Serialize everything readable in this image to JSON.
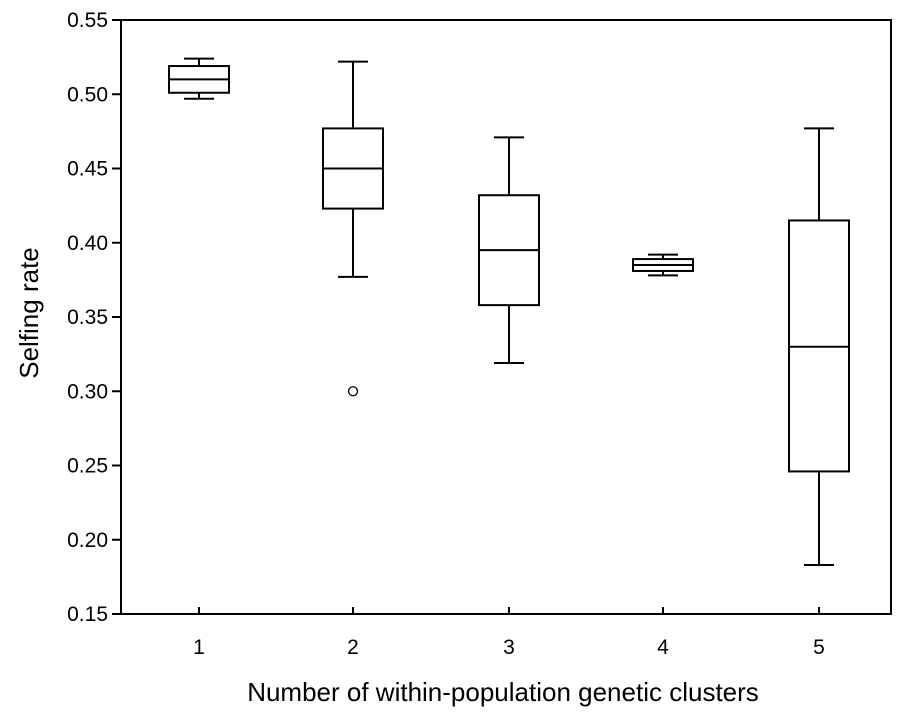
{
  "chart_data": {
    "type": "boxplot",
    "xlabel": "Number of within-population genetic clusters",
    "ylabel": "Selfing rate",
    "categories": [
      "1",
      "2",
      "3",
      "4",
      "5"
    ],
    "ylim": [
      0.15,
      0.55
    ],
    "yticks": [
      0.15,
      0.2,
      0.25,
      0.3,
      0.35,
      0.4,
      0.45,
      0.5,
      0.55
    ],
    "ytick_labels": [
      "0.15",
      "0.20",
      "0.25",
      "0.30",
      "0.35",
      "0.40",
      "0.45",
      "0.50",
      "0.55"
    ],
    "grid": false,
    "boxes": [
      {
        "category": "1",
        "min": 0.497,
        "q1": 0.501,
        "median": 0.51,
        "q3": 0.519,
        "max": 0.524,
        "outliers": []
      },
      {
        "category": "2",
        "min": 0.377,
        "q1": 0.423,
        "median": 0.45,
        "q3": 0.477,
        "max": 0.522,
        "outliers": [
          0.3
        ]
      },
      {
        "category": "3",
        "min": 0.319,
        "q1": 0.358,
        "median": 0.395,
        "q3": 0.432,
        "max": 0.471,
        "outliers": []
      },
      {
        "category": "4",
        "min": 0.378,
        "q1": 0.381,
        "median": 0.385,
        "q3": 0.389,
        "max": 0.392,
        "outliers": []
      },
      {
        "category": "5",
        "min": 0.183,
        "q1": 0.246,
        "median": 0.33,
        "q3": 0.415,
        "max": 0.477,
        "outliers": []
      }
    ]
  }
}
